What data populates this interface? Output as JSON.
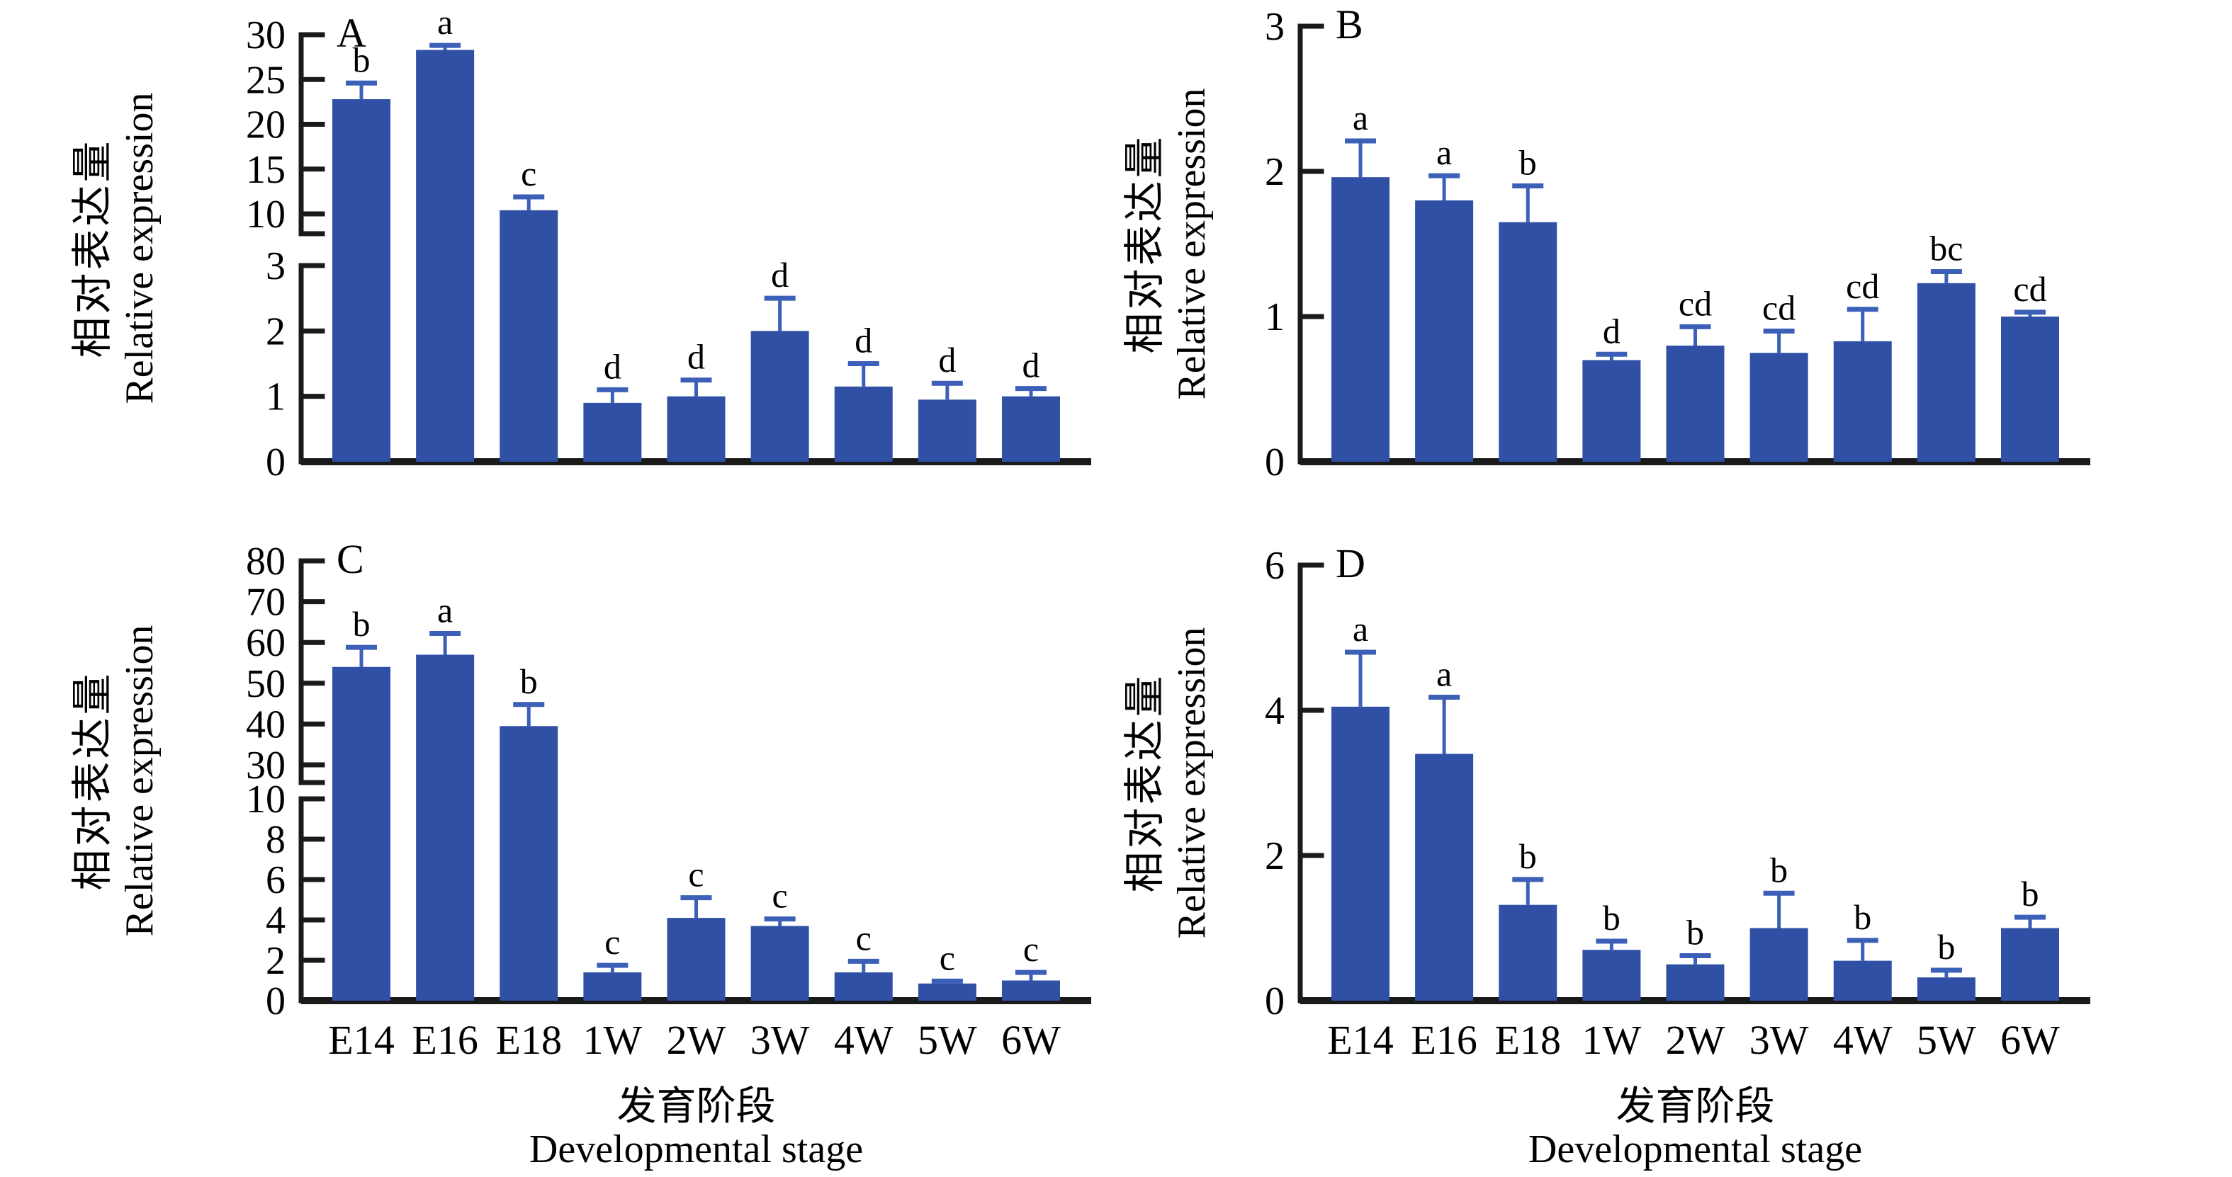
{
  "figure": {
    "background": "#ffffff",
    "x_axis": {
      "title_zh": "发育阶段",
      "title_en": "Developmental stage"
    },
    "y_axis": {
      "title_zh": "相对表达量",
      "title_en": "Relative expression"
    },
    "colors": {
      "bar": "#2f50a5",
      "error_bar": "#3c5fb8",
      "axis": "#1a1a1a",
      "text": "#000000"
    }
  },
  "chart_data": [
    {
      "panel": "A",
      "type": "bar",
      "categories": [
        "E14",
        "E16",
        "E18",
        "1W",
        "2W",
        "3W",
        "4W",
        "5W",
        "6W"
      ],
      "values": [
        22.8,
        28.3,
        10.4,
        0.9,
        1.0,
        2.0,
        1.15,
        0.95,
        1.0
      ],
      "errors": [
        1.8,
        0.5,
        1.5,
        0.2,
        0.25,
        0.5,
        0.35,
        0.25,
        0.12
      ],
      "sig_letters": [
        "b",
        "a",
        "c",
        "d",
        "d",
        "d",
        "d",
        "d",
        "d"
      ],
      "broken_axis": true,
      "lower_ticks": [
        0,
        1,
        2,
        3
      ],
      "upper_ticks": [
        10,
        15,
        20,
        25,
        30
      ],
      "ylim_lower": [
        0,
        3
      ],
      "ylim_upper": [
        10,
        30
      ],
      "grid": false,
      "show_x_labels": false,
      "show_x_title": false
    },
    {
      "panel": "B",
      "type": "bar",
      "categories": [
        "E14",
        "E16",
        "E18",
        "1W",
        "2W",
        "3W",
        "4W",
        "5W",
        "6W"
      ],
      "values": [
        1.96,
        1.8,
        1.65,
        0.7,
        0.8,
        0.75,
        0.83,
        1.23,
        1.0
      ],
      "errors": [
        0.25,
        0.17,
        0.25,
        0.04,
        0.13,
        0.15,
        0.22,
        0.08,
        0.03
      ],
      "sig_letters": [
        "a",
        "a",
        "b",
        "d",
        "cd",
        "cd",
        "cd",
        "bc",
        "cd"
      ],
      "broken_axis": false,
      "ticks": [
        0,
        1,
        2,
        3
      ],
      "ylim": [
        0,
        3
      ],
      "grid": false,
      "show_x_labels": false,
      "show_x_title": false
    },
    {
      "panel": "C",
      "type": "bar",
      "categories": [
        "E14",
        "E16",
        "E18",
        "1W",
        "2W",
        "3W",
        "4W",
        "5W",
        "6W"
      ],
      "values": [
        54,
        57,
        39.5,
        1.4,
        4.1,
        3.7,
        1.4,
        0.85,
        1.0
      ],
      "errors": [
        4.8,
        5.2,
        5.3,
        0.35,
        1.0,
        0.35,
        0.55,
        0.12,
        0.4
      ],
      "sig_letters": [
        "b",
        "a",
        "b",
        "c",
        "c",
        "c",
        "c",
        "c",
        "c"
      ],
      "broken_axis": true,
      "lower_ticks": [
        0,
        2,
        4,
        6,
        8,
        10
      ],
      "upper_ticks": [
        30,
        40,
        50,
        60,
        70,
        80
      ],
      "ylim_lower": [
        0,
        10
      ],
      "ylim_upper": [
        30,
        80
      ],
      "grid": false,
      "show_x_labels": true,
      "show_x_title": true
    },
    {
      "panel": "D",
      "type": "bar",
      "categories": [
        "E14",
        "E16",
        "E18",
        "1W",
        "2W",
        "3W",
        "4W",
        "5W",
        "6W"
      ],
      "values": [
        4.05,
        3.4,
        1.32,
        0.7,
        0.5,
        1.0,
        0.55,
        0.32,
        1.0
      ],
      "errors": [
        0.75,
        0.78,
        0.35,
        0.12,
        0.12,
        0.48,
        0.28,
        0.1,
        0.15
      ],
      "sig_letters": [
        "a",
        "a",
        "b",
        "b",
        "b",
        "b",
        "b",
        "b",
        "b"
      ],
      "broken_axis": false,
      "ticks": [
        0,
        2,
        4,
        6
      ],
      "ylim": [
        0,
        6
      ],
      "grid": false,
      "show_x_labels": true,
      "show_x_title": true
    }
  ]
}
